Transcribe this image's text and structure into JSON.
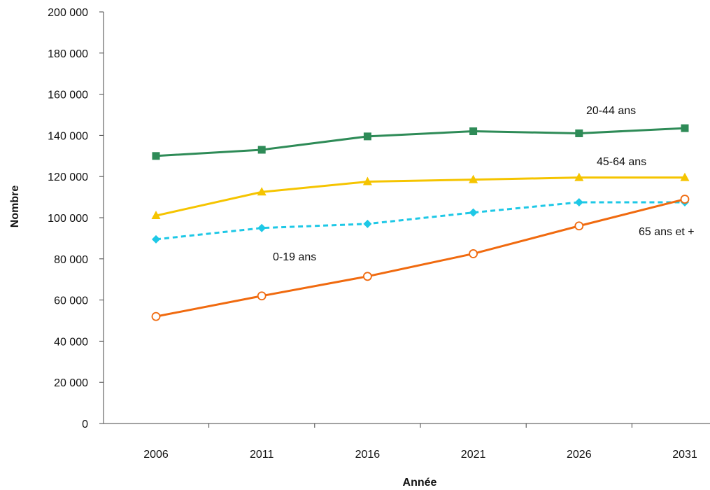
{
  "chart_data": {
    "type": "line",
    "categories": [
      "2006",
      "2011",
      "2016",
      "2021",
      "2026",
      "2031"
    ],
    "xlabel": "Année",
    "ylabel": "Nombre",
    "ylim": [
      0,
      200000
    ],
    "yticks": [
      0,
      20000,
      40000,
      60000,
      80000,
      100000,
      120000,
      140000,
      160000,
      180000,
      200000
    ],
    "ytick_labels": [
      "0",
      "20 000",
      "40 000",
      "60 000",
      "80 000",
      "100 000",
      "120 000",
      "140 000",
      "160 000",
      "180 000",
      "200 000"
    ],
    "grid": false,
    "legend": "inline labels",
    "series": [
      {
        "name": "20-44 ans",
        "values": [
          130000,
          133000,
          139500,
          142000,
          141000,
          143500
        ],
        "color": "#2e8b57",
        "marker": "square",
        "line": "solid"
      },
      {
        "name": "45-64 ans",
        "values": [
          101000,
          112500,
          117500,
          118500,
          119500,
          119500
        ],
        "color": "#f5c400",
        "marker": "triangle",
        "line": "solid"
      },
      {
        "name": "0-19 ans",
        "values": [
          89500,
          95000,
          97000,
          102500,
          107500,
          107500
        ],
        "color": "#1ec8e6",
        "marker": "diamond",
        "line": "dashed"
      },
      {
        "name": "65 ans et +",
        "values": [
          52000,
          62000,
          71500,
          82500,
          96000,
          109000
        ],
        "color": "#f06a0f",
        "marker": "open-circle",
        "line": "solid"
      }
    ]
  }
}
